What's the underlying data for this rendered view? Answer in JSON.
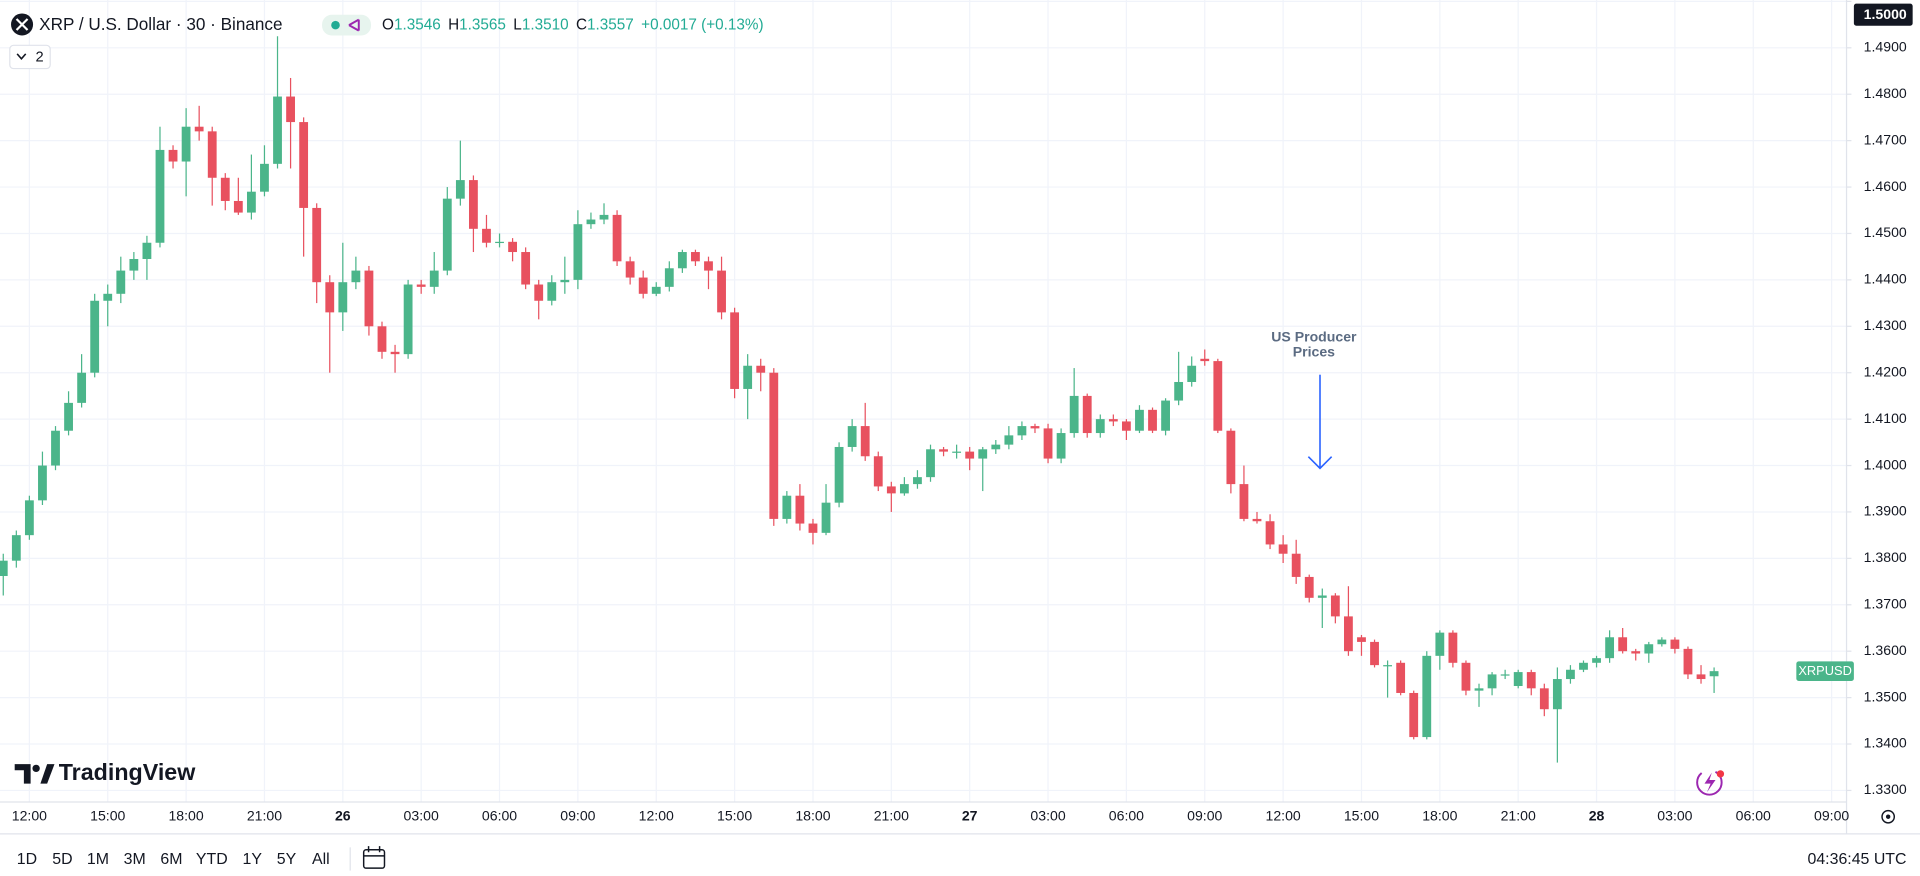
{
  "header": {
    "symbol": "XRP / U.S. Dollar · 30 · Binance",
    "indicators": "2",
    "ohlc": [
      {
        "label": "O",
        "value": "1.3546"
      },
      {
        "label": "H",
        "value": "1.3565"
      },
      {
        "label": "L",
        "value": "1.3510"
      },
      {
        "label": "C",
        "value": "1.3557"
      }
    ],
    "change": "+0.0017 (+0.13%)"
  },
  "watermark": "TradingView",
  "toolbar": {
    "ranges": [
      "1D",
      "5D",
      "1M",
      "3M",
      "6M",
      "YTD",
      "1Y",
      "5Y",
      "All"
    ],
    "clock": "04:36:45 UTC"
  },
  "chart_data": {
    "type": "candlestick",
    "annotation": [
      "US Producer",
      "Prices"
    ],
    "x": [
      11,
      11.5,
      12,
      12.5,
      13,
      13.5,
      14,
      14.5,
      15,
      15.5,
      16,
      16.5,
      17,
      17.5,
      18,
      18.5,
      19,
      19.5,
      20,
      20.5,
      21,
      21.5,
      22,
      22.5,
      23,
      23.5,
      24,
      24.5,
      25,
      25.5,
      26,
      26.5,
      27,
      27.5,
      28,
      28.5,
      29,
      29.5,
      30,
      30.5,
      31,
      31.5,
      32,
      32.5,
      33,
      33.5,
      34,
      34.5,
      35,
      35.5,
      36,
      36.5,
      37,
      37.5,
      38,
      38.5,
      39,
      39.5,
      40,
      40.5,
      41,
      41.5,
      42,
      42.5,
      43,
      43.5,
      44,
      44.5,
      45,
      45.5,
      46,
      46.5,
      47,
      47.5,
      48,
      48.5,
      49,
      49.5,
      50,
      50.5,
      51,
      51.5,
      52,
      52.5,
      53,
      53.5,
      54,
      54.5,
      55,
      55.5,
      56,
      56.5,
      57,
      57.5,
      58,
      58.5,
      59,
      59.5,
      60,
      60.5,
      61,
      61.5,
      62,
      62.5,
      63,
      63.5,
      64,
      64.5,
      65,
      65.5,
      66,
      66.5,
      67,
      67.5,
      68,
      68.5,
      69,
      69.5,
      70,
      70.5,
      71,
      71.5,
      72,
      72.5,
      73,
      73.5,
      74,
      74.5,
      75,
      75.5,
      76,
      76.5
    ],
    "series": [
      {
        "name": "XRPUSD",
        "up_color": "#4bb58a",
        "down_color": "#e8515f",
        "open": [
          1.3762,
          1.3795,
          1.385,
          1.3925,
          1.4,
          1.4075,
          1.4135,
          1.42,
          1.4355,
          1.437,
          1.442,
          1.4445,
          1.448,
          1.468,
          1.4655,
          1.473,
          1.472,
          1.462,
          1.457,
          1.4545,
          1.459,
          1.465,
          1.4795,
          1.474,
          1.4555,
          1.4395,
          1.433,
          1.4395,
          1.442,
          1.43,
          1.4245,
          1.424,
          1.439,
          1.4385,
          1.442,
          1.4575,
          1.4615,
          1.451,
          1.448,
          1.4482,
          1.446,
          1.439,
          1.4355,
          1.4395,
          1.44,
          1.452,
          1.453,
          1.454,
          1.444,
          1.4405,
          1.437,
          1.4385,
          1.4425,
          1.446,
          1.444,
          1.442,
          1.433,
          1.4165,
          1.4215,
          1.42,
          1.3885,
          1.3935,
          1.3875,
          1.3855,
          1.392,
          1.404,
          1.4085,
          1.402,
          1.3955,
          1.394,
          1.396,
          1.3975,
          1.4035,
          1.403,
          1.403,
          1.4015,
          1.4035,
          1.4045,
          1.4065,
          1.4085,
          1.408,
          1.4015,
          1.407,
          1.415,
          1.407,
          1.41,
          1.4095,
          1.4075,
          1.412,
          1.4075,
          1.414,
          1.418,
          1.423,
          1.4225,
          1.4075,
          1.396,
          1.3885,
          1.388,
          1.383,
          1.381,
          1.376,
          1.3715,
          1.372,
          1.3675,
          1.363,
          1.362,
          1.357,
          1.3575,
          1.351,
          1.3415,
          1.359,
          1.364,
          1.3575,
          1.3515,
          1.352,
          1.355,
          1.3525,
          1.3555,
          1.352,
          1.3475,
          1.354,
          1.356,
          1.3575,
          1.3585,
          1.363,
          1.36,
          1.3595,
          1.3615,
          1.3625,
          1.3605,
          1.355,
          1.3546
        ],
        "high": [
          1.381,
          1.386,
          1.3935,
          1.403,
          1.4085,
          1.416,
          1.424,
          1.437,
          1.439,
          1.445,
          1.446,
          1.4495,
          1.473,
          1.469,
          1.477,
          1.4775,
          1.473,
          1.463,
          1.462,
          1.467,
          1.469,
          1.4925,
          1.4835,
          1.475,
          1.4565,
          1.441,
          1.448,
          1.445,
          1.443,
          1.431,
          1.426,
          1.44,
          1.44,
          1.446,
          1.46,
          1.47,
          1.4625,
          1.454,
          1.45,
          1.449,
          1.447,
          1.44,
          1.441,
          1.445,
          1.455,
          1.4545,
          1.4565,
          1.455,
          1.445,
          1.442,
          1.4395,
          1.444,
          1.4465,
          1.4465,
          1.445,
          1.445,
          1.434,
          1.424,
          1.423,
          1.421,
          1.3945,
          1.396,
          1.3885,
          1.396,
          1.405,
          1.41,
          1.4135,
          1.403,
          1.3965,
          1.3975,
          1.399,
          1.4045,
          1.404,
          1.4045,
          1.404,
          1.404,
          1.4055,
          1.4085,
          1.4095,
          1.409,
          1.409,
          1.408,
          1.421,
          1.4155,
          1.411,
          1.411,
          1.41,
          1.413,
          1.4125,
          1.4145,
          1.4245,
          1.4235,
          1.425,
          1.423,
          1.408,
          1.4,
          1.39,
          1.3895,
          1.385,
          1.384,
          1.3765,
          1.3735,
          1.3725,
          1.374,
          1.3635,
          1.3625,
          1.358,
          1.358,
          1.3515,
          1.36,
          1.3645,
          1.3645,
          1.358,
          1.353,
          1.3555,
          1.356,
          1.356,
          1.356,
          1.353,
          1.3565,
          1.357,
          1.358,
          1.359,
          1.3645,
          1.365,
          1.3605,
          1.362,
          1.363,
          1.363,
          1.361,
          1.357,
          1.3565
        ],
        "low": [
          1.372,
          1.378,
          1.384,
          1.3915,
          1.399,
          1.4065,
          1.4125,
          1.419,
          1.43,
          1.435,
          1.44,
          1.44,
          1.447,
          1.464,
          1.458,
          1.47,
          1.456,
          1.455,
          1.454,
          1.453,
          1.458,
          1.464,
          1.464,
          1.445,
          1.435,
          1.42,
          1.429,
          1.438,
          1.428,
          1.423,
          1.42,
          1.423,
          1.437,
          1.437,
          1.441,
          1.456,
          1.446,
          1.447,
          1.447,
          1.444,
          1.438,
          1.4315,
          1.4345,
          1.437,
          1.438,
          1.451,
          1.452,
          1.443,
          1.439,
          1.436,
          1.4365,
          1.4375,
          1.4415,
          1.443,
          1.438,
          1.4315,
          1.4145,
          1.41,
          1.416,
          1.387,
          1.3875,
          1.386,
          1.383,
          1.385,
          1.391,
          1.403,
          1.401,
          1.3945,
          1.39,
          1.3935,
          1.395,
          1.3965,
          1.402,
          1.4015,
          1.399,
          1.3945,
          1.4025,
          1.4035,
          1.4055,
          1.407,
          1.4005,
          1.4005,
          1.406,
          1.406,
          1.406,
          1.4085,
          1.4055,
          1.407,
          1.407,
          1.4065,
          1.413,
          1.417,
          1.4215,
          1.407,
          1.394,
          1.388,
          1.3875,
          1.382,
          1.379,
          1.3745,
          1.3705,
          1.365,
          1.366,
          1.359,
          1.359,
          1.3565,
          1.35,
          1.3505,
          1.341,
          1.341,
          1.356,
          1.3565,
          1.3505,
          1.348,
          1.3505,
          1.354,
          1.352,
          1.3505,
          1.346,
          1.336,
          1.353,
          1.3555,
          1.3565,
          1.3575,
          1.3595,
          1.358,
          1.3575,
          1.361,
          1.3595,
          1.354,
          1.353,
          1.351
        ],
        "close": [
          1.3795,
          1.385,
          1.3925,
          1.4,
          1.4075,
          1.4135,
          1.42,
          1.4355,
          1.437,
          1.442,
          1.4445,
          1.448,
          1.468,
          1.4655,
          1.473,
          1.472,
          1.462,
          1.457,
          1.4545,
          1.459,
          1.465,
          1.4795,
          1.474,
          1.4555,
          1.4395,
          1.433,
          1.4395,
          1.442,
          1.43,
          1.4245,
          1.424,
          1.439,
          1.4385,
          1.442,
          1.4575,
          1.4615,
          1.451,
          1.448,
          1.4482,
          1.446,
          1.439,
          1.4355,
          1.4395,
          1.44,
          1.452,
          1.453,
          1.454,
          1.444,
          1.4405,
          1.437,
          1.4385,
          1.4425,
          1.446,
          1.444,
          1.442,
          1.433,
          1.4165,
          1.4215,
          1.42,
          1.3885,
          1.3935,
          1.3875,
          1.3855,
          1.392,
          1.404,
          1.4085,
          1.402,
          1.3955,
          1.394,
          1.396,
          1.3975,
          1.4035,
          1.403,
          1.403,
          1.4015,
          1.4035,
          1.4045,
          1.4065,
          1.4085,
          1.408,
          1.4015,
          1.407,
          1.415,
          1.407,
          1.41,
          1.4095,
          1.4075,
          1.412,
          1.4075,
          1.414,
          1.418,
          1.4215,
          1.4225,
          1.4075,
          1.396,
          1.3885,
          1.388,
          1.383,
          1.381,
          1.376,
          1.3715,
          1.372,
          1.3675,
          1.36,
          1.362,
          1.357,
          1.357,
          1.351,
          1.3415,
          1.359,
          1.364,
          1.3575,
          1.3515,
          1.352,
          1.355,
          1.355,
          1.3555,
          1.352,
          1.3475,
          1.354,
          1.356,
          1.3575,
          1.3585,
          1.363,
          1.36,
          1.3595,
          1.3615,
          1.3625,
          1.3605,
          1.355,
          1.354,
          1.3557
        ]
      }
    ],
    "xlim": [
      10.875,
      81.43
    ],
    "xticks": [
      {
        "value": 12,
        "label": "12:00"
      },
      {
        "value": 15,
        "label": "15:00"
      },
      {
        "value": 18,
        "label": "18:00"
      },
      {
        "value": 21,
        "label": "21:00"
      },
      {
        "value": 24,
        "label": "26"
      },
      {
        "value": 27,
        "label": "03:00"
      },
      {
        "value": 30,
        "label": "06:00"
      },
      {
        "value": 33,
        "label": "09:00"
      },
      {
        "value": 36,
        "label": "12:00"
      },
      {
        "value": 39,
        "label": "15:00"
      },
      {
        "value": 42,
        "label": "18:00"
      },
      {
        "value": 45,
        "label": "21:00"
      },
      {
        "value": 48,
        "label": "27"
      },
      {
        "value": 51,
        "label": "03:00"
      },
      {
        "value": 54,
        "label": "06:00"
      },
      {
        "value": 57,
        "label": "09:00"
      },
      {
        "value": 60,
        "label": "12:00"
      },
      {
        "value": 63,
        "label": "15:00"
      },
      {
        "value": 66,
        "label": "18:00"
      },
      {
        "value": 69,
        "label": "21:00"
      },
      {
        "value": 72,
        "label": "28"
      },
      {
        "value": 75,
        "label": "03:00"
      },
      {
        "value": 78,
        "label": "06:00"
      },
      {
        "value": 81,
        "label": "09:00"
      }
    ],
    "ylim": [
      1.3275,
      1.5003
    ],
    "yticks": [
      {
        "value": 1.33,
        "label": "1.3300"
      },
      {
        "value": 1.34,
        "label": "1.3400"
      },
      {
        "value": 1.35,
        "label": "1.3500"
      },
      {
        "value": 1.36,
        "label": "1.3600"
      },
      {
        "value": 1.37,
        "label": "1.3700"
      },
      {
        "value": 1.38,
        "label": "1.3800"
      },
      {
        "value": 1.39,
        "label": "1.3900"
      },
      {
        "value": 1.4,
        "label": "1.4000"
      },
      {
        "value": 1.41,
        "label": "1.4100"
      },
      {
        "value": 1.42,
        "label": "1.4200"
      },
      {
        "value": 1.43,
        "label": "1.4300"
      },
      {
        "value": 1.44,
        "label": "1.4400"
      },
      {
        "value": 1.45,
        "label": "1.4500"
      },
      {
        "value": 1.46,
        "label": "1.4600"
      },
      {
        "value": 1.47,
        "label": "1.4700"
      },
      {
        "value": 1.48,
        "label": "1.4800"
      },
      {
        "value": 1.49,
        "label": "1.4900"
      },
      {
        "value": 1.5,
        "label": "1.5000"
      }
    ],
    "grid": true
  }
}
